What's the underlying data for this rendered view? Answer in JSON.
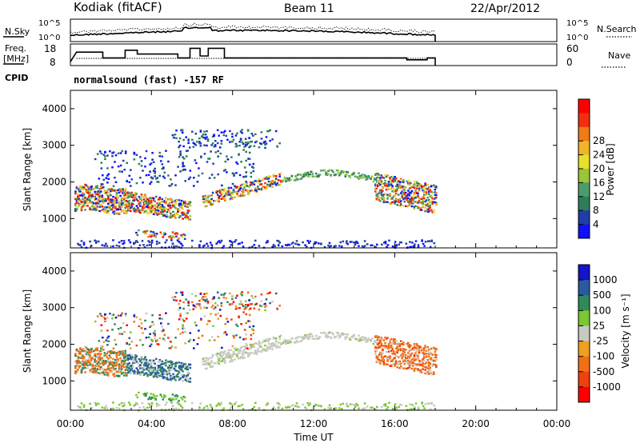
{
  "header": {
    "title": "Kodiak (fitACF)",
    "beam": "Beam 11",
    "date": "22/Apr/2012"
  },
  "sky_panel": {
    "left_label": "N.Sky",
    "right_label": "N.Search",
    "left_ticks": [
      "10^5",
      "10^0"
    ],
    "right_ticks": [
      "10^5",
      "10^0"
    ]
  },
  "freq_panel": {
    "left_label_line1": "Freq.",
    "left_label_line2": "[MHz]",
    "right_label": "Nave",
    "left_ticks": [
      "18",
      "8"
    ],
    "right_ticks": [
      "60",
      "0"
    ]
  },
  "cpid": {
    "label": "CPID",
    "text": "normalsound (fast) -157 RF"
  },
  "chart_data": [
    {
      "type": "heatmap",
      "name": "power",
      "ylabel": "Slant Range [km]",
      "yticks": [
        "1000",
        "2000",
        "3000",
        "4000"
      ],
      "colorbar_label": "Power [dB]",
      "colorbar_ticks": [
        "4",
        "8",
        "12",
        "16",
        "20",
        "24",
        "28"
      ],
      "colorbar_colors": [
        "#1010ff",
        "#1f3fa8",
        "#2e7d57",
        "#4a9d6a",
        "#9ac53a",
        "#e8e02a",
        "#f0b428",
        "#f07a18",
        "#f03010",
        "#ff0000"
      ],
      "ylim": [
        200,
        4500
      ],
      "xlim": [
        0,
        24
      ]
    },
    {
      "type": "heatmap",
      "name": "velocity",
      "ylabel": "Slant Range [km]",
      "yticks": [
        "1000",
        "2000",
        "3000",
        "4000"
      ],
      "colorbar_label": "Velocity [m s⁻¹]",
      "colorbar_ticks": [
        "1000",
        "500",
        "100",
        "25",
        "-25",
        "-100",
        "-500",
        "-1000"
      ],
      "colorbar_colors": [
        "#1414c8",
        "#2a5aa0",
        "#2e8a5a",
        "#7ac832",
        "#c8c8c0",
        "#f0a020",
        "#f07018",
        "#f04010",
        "#ff0000"
      ],
      "ylim": [
        200,
        4500
      ],
      "xlim": [
        0,
        24
      ]
    }
  ],
  "xaxis": {
    "label": "Time UT",
    "ticks": [
      "00:00",
      "04:00",
      "08:00",
      "12:00",
      "16:00",
      "20:00",
      "00:00"
    ]
  }
}
